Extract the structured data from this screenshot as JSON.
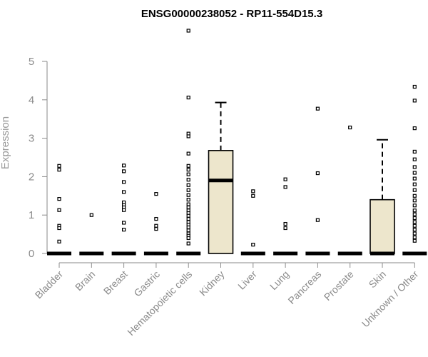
{
  "chart_data": {
    "type": "box",
    "title": "ENSG00000238052 - RP11-554D15.3",
    "xlabel": "",
    "ylabel": "Expression",
    "ylim": [
      0,
      5.5
    ],
    "yticks": [
      0,
      1,
      2,
      3,
      4,
      5
    ],
    "categories": [
      "Bladder",
      "Brain",
      "Breast",
      "Gastric",
      "Hematopoietic cells",
      "Kidney",
      "Liver",
      "Lung",
      "Pancreas",
      "Prostate",
      "Skin",
      "Unknown / Other"
    ],
    "boxes": [
      {
        "category": "Bladder",
        "q1": 0,
        "median": 0,
        "q3": 0,
        "whisker_low": 0,
        "whisker_high": 0,
        "outliers": [
          2.28,
          2.18,
          1.42,
          1.13,
          0.72,
          0.66,
          0.31
        ]
      },
      {
        "category": "Brain",
        "q1": 0,
        "median": 0,
        "q3": 0,
        "whisker_low": 0,
        "whisker_high": 0,
        "outliers": [
          1.0
        ]
      },
      {
        "category": "Breast",
        "q1": 0,
        "median": 0,
        "q3": 0,
        "whisker_low": 0,
        "whisker_high": 0,
        "outliers": [
          2.29,
          2.14,
          1.86,
          1.6,
          1.33,
          1.26,
          1.2,
          1.13,
          0.8,
          0.62
        ]
      },
      {
        "category": "Gastric",
        "q1": 0,
        "median": 0,
        "q3": 0,
        "whisker_low": 0,
        "whisker_high": 0,
        "outliers": [
          1.55,
          0.9,
          0.72,
          0.64
        ]
      },
      {
        "category": "Hematopoietic cells",
        "q1": 0,
        "median": 0,
        "q3": 0,
        "whisker_low": 0,
        "whisker_high": 0,
        "outliers": [
          5.8,
          4.06,
          3.12,
          3.05,
          2.6,
          2.28,
          2.18,
          2.06,
          1.92,
          1.78,
          1.65,
          1.52,
          1.4,
          1.28,
          1.2,
          1.12,
          1.05,
          0.98,
          0.9,
          0.82,
          0.75,
          0.68,
          0.6,
          0.52,
          0.46,
          0.4,
          0.26
        ]
      },
      {
        "category": "Kidney",
        "q1": 0,
        "median": 1.9,
        "q3": 2.68,
        "whisker_low": 0,
        "whisker_high": 3.93,
        "outliers": []
      },
      {
        "category": "Liver",
        "q1": 0,
        "median": 0,
        "q3": 0,
        "whisker_low": 0,
        "whisker_high": 0,
        "outliers": [
          1.62,
          1.5,
          0.23
        ]
      },
      {
        "category": "Lung",
        "q1": 0,
        "median": 0,
        "q3": 0,
        "whisker_low": 0,
        "whisker_high": 0,
        "outliers": [
          1.93,
          1.73,
          0.77,
          0.66
        ]
      },
      {
        "category": "Pancreas",
        "q1": 0,
        "median": 0,
        "q3": 0,
        "whisker_low": 0,
        "whisker_high": 0,
        "outliers": [
          3.77,
          2.09,
          0.87
        ]
      },
      {
        "category": "Prostate",
        "q1": 0,
        "median": 0,
        "q3": 0,
        "whisker_low": 0,
        "whisker_high": 0,
        "outliers": [
          3.28
        ]
      },
      {
        "category": "Skin",
        "q1": 0,
        "median": 0,
        "q3": 1.4,
        "whisker_low": 0,
        "whisker_high": 2.96,
        "outliers": []
      },
      {
        "category": "Unknown / Other",
        "q1": 0,
        "median": 0,
        "q3": 0,
        "whisker_low": 0,
        "whisker_high": 0,
        "outliers": [
          4.34,
          3.98,
          3.26,
          2.65,
          2.45,
          2.25,
          2.1,
          1.95,
          1.8,
          1.65,
          1.5,
          1.38,
          1.25,
          1.12,
          1.02,
          0.92,
          0.82,
          0.72,
          0.62,
          0.52,
          0.42,
          0.33
        ]
      }
    ],
    "box_fill": "#ede6cc",
    "grid": false,
    "legend": "none"
  }
}
